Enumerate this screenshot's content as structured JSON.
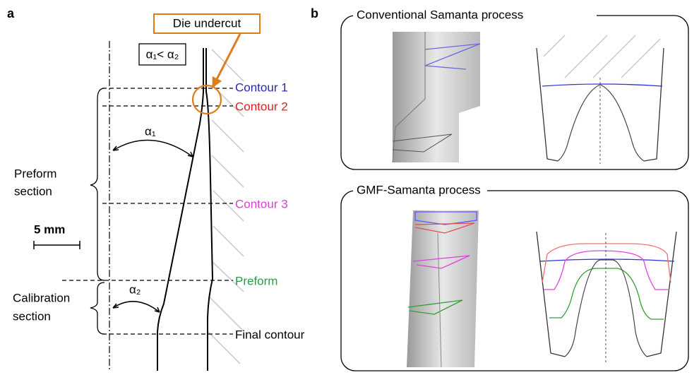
{
  "panel_a": {
    "label": "a",
    "callout": "Die undercut",
    "condition": "α₁< α₂",
    "contours": [
      "Contour 1",
      "Contour 2",
      "Contour 3",
      "Preform",
      "Final contour"
    ],
    "angle_1": "α₁",
    "angle_2": "α₂",
    "preform_section": [
      "Preform",
      "section"
    ],
    "calibration_section": [
      "Calibration",
      "section"
    ],
    "scale_bar": "5 mm"
  },
  "panel_b": {
    "label": "b",
    "top_title": "Conventional  Samanta process",
    "bottom_title": "GMF-Samanta process"
  }
}
